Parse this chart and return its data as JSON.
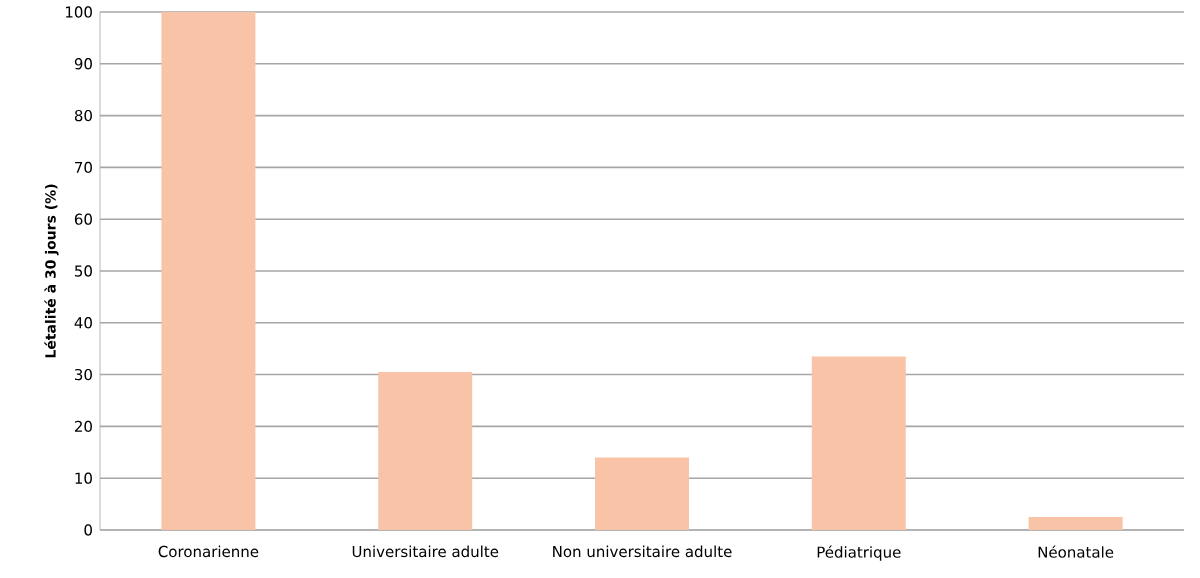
{
  "chart_data": {
    "type": "bar",
    "ylabel": "Létalité à 30 jours (%)",
    "categories": [
      "Coronarienne",
      "Universitaire adulte",
      "Non universitaire adulte",
      "Pédiatrique",
      "Néonatale"
    ],
    "values": [
      100,
      30.5,
      14,
      33.5,
      2.5
    ],
    "color": "#f9c3a7",
    "ylim": [
      0,
      100
    ],
    "yticks": [
      0,
      10,
      20,
      30,
      40,
      50,
      60,
      70,
      80,
      90,
      100
    ],
    "grid": "y"
  }
}
